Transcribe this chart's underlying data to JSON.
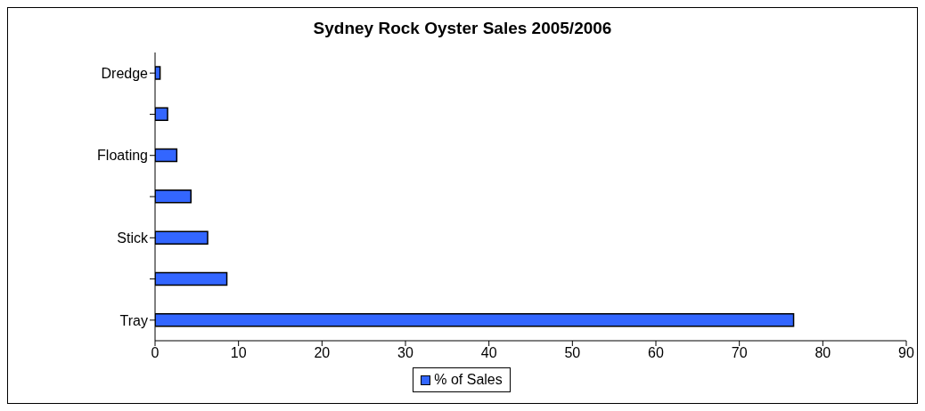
{
  "chart_data": {
    "type": "bar",
    "orientation": "horizontal",
    "title": "Sydney Rock Oyster Sales 2005/2006",
    "categories": [
      "Dredge",
      null,
      "Floating",
      null,
      "Stick",
      null,
      "Tray"
    ],
    "series": [
      {
        "name": "% of Sales",
        "color": "#3366ff",
        "values": [
          0.6,
          1.5,
          2.6,
          4.3,
          6.3,
          8.6,
          76.5
        ]
      }
    ],
    "xlim": [
      0,
      90
    ],
    "xticks": [
      0,
      10,
      20,
      30,
      40,
      50,
      60,
      70,
      80,
      90
    ],
    "grid": false,
    "legend": "bottom"
  }
}
